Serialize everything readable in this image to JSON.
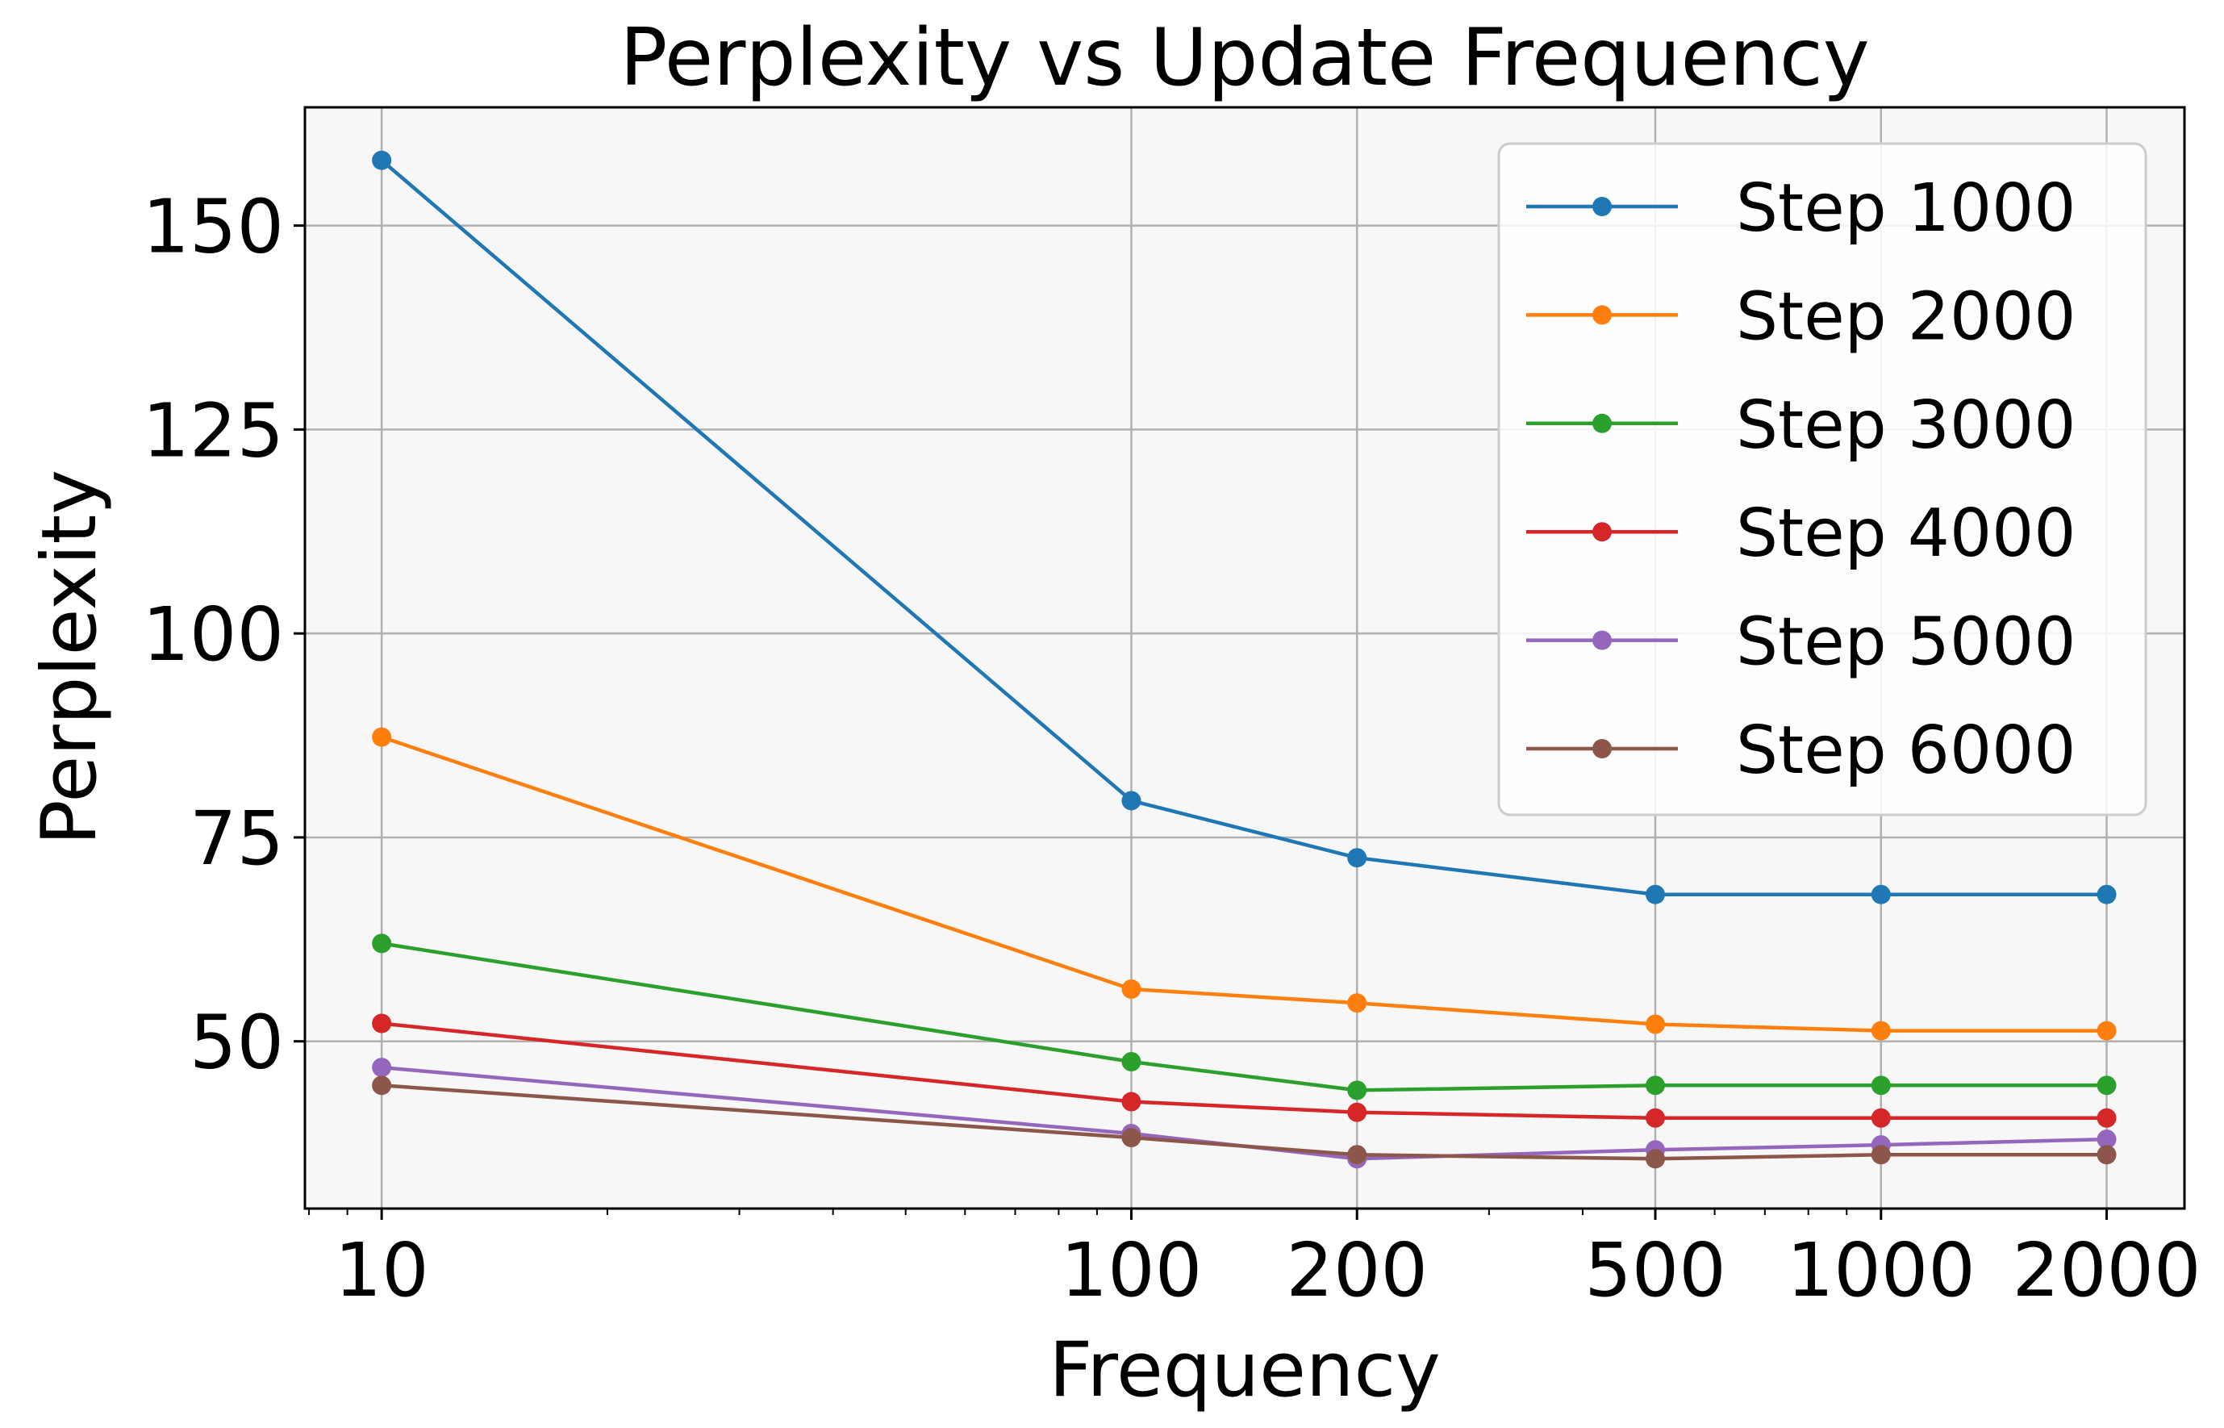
{
  "chart_data": {
    "type": "line",
    "title": "Perplexity vs Update Frequency",
    "xlabel": "Frequency",
    "ylabel": "Perplexity",
    "x_scale": "log",
    "x": [
      10,
      100,
      200,
      500,
      1000,
      2000
    ],
    "x_tick_labels": [
      "10",
      "100",
      "200",
      "500",
      "1000",
      "2000"
    ],
    "xlim": [
      7.9,
      2540
    ],
    "ylim": [
      29.5,
      164.5
    ],
    "y_ticks": [
      50,
      75,
      100,
      125,
      150
    ],
    "grid": true,
    "legend_position": "top-right",
    "background": "#f7f7f7",
    "series": [
      {
        "name": "Step 1000",
        "color": "#1f77b4",
        "values": [
          158.0,
          79.5,
          72.5,
          68.0,
          68.0,
          68.0
        ]
      },
      {
        "name": "Step 2000",
        "color": "#ff7f0e",
        "values": [
          87.3,
          56.4,
          54.7,
          52.1,
          51.3,
          51.3
        ]
      },
      {
        "name": "Step 3000",
        "color": "#2ca02c",
        "values": [
          62.0,
          47.5,
          44.0,
          44.6,
          44.6,
          44.6
        ]
      },
      {
        "name": "Step 4000",
        "color": "#d62728",
        "values": [
          52.2,
          42.6,
          41.3,
          40.6,
          40.6,
          40.6
        ]
      },
      {
        "name": "Step 5000",
        "color": "#9467bd",
        "values": [
          46.8,
          38.7,
          35.6,
          36.7,
          37.3,
          38.0
        ]
      },
      {
        "name": "Step 6000",
        "color": "#8c564b",
        "values": [
          44.6,
          38.2,
          36.1,
          35.6,
          36.1,
          36.1
        ]
      }
    ]
  }
}
